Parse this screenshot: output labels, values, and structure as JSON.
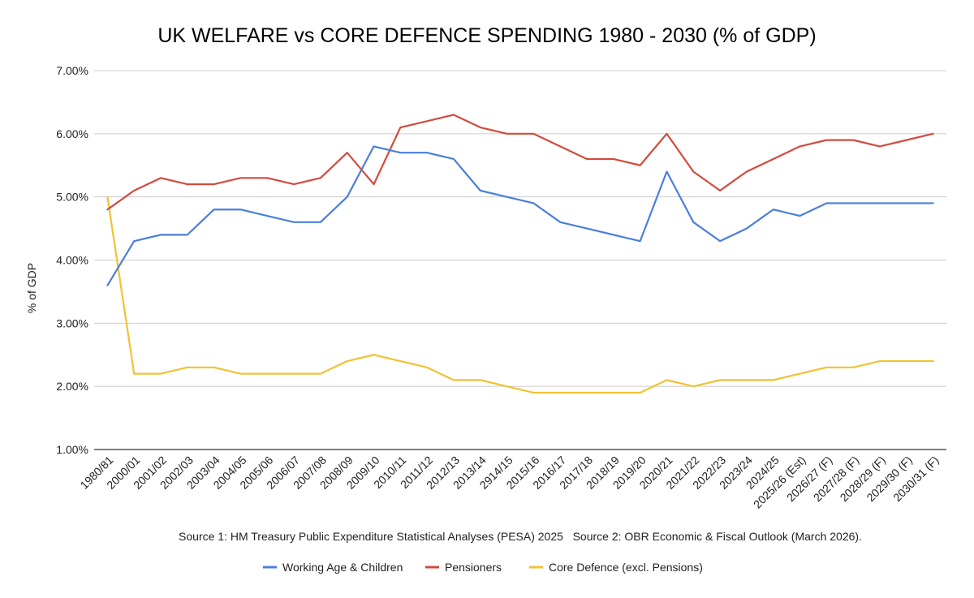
{
  "chart_data": {
    "type": "line",
    "title": "UK WELFARE vs CORE DEFENCE SPENDING 1980 - 2030 (% of GDP)",
    "xlabel": "",
    "ylabel": "% of GDP",
    "ylim": [
      1,
      7
    ],
    "yticks": [
      "1.00%",
      "2.00%",
      "3.00%",
      "4.00%",
      "5.00%",
      "6.00%",
      "7.00%"
    ],
    "ytick_values": [
      1,
      2,
      3,
      4,
      5,
      6,
      7
    ],
    "grid": true,
    "legend_position": "bottom",
    "categories": [
      "1980/81",
      "2000/01",
      "2001/02",
      "2002/03",
      "2003/04",
      "2004/05",
      "2005/06",
      "2006/07",
      "2007/08",
      "2008/09",
      "2009/10",
      "2010/11",
      "2011/12",
      "2012/13",
      "2013/14",
      "2914/15",
      "2015/16",
      "2016/17",
      "2017/18",
      "2018/19",
      "2019/20",
      "2020/21",
      "2021/22",
      "2022/23",
      "2023/24",
      "2024/25",
      "2025/26 (Est)",
      "2026/27 (F)",
      "2027/28 (F)",
      "2028/29 (F)",
      "2029/30 (F)",
      "2030/31 (F)"
    ],
    "series": [
      {
        "name": "Working Age & Children",
        "color": "#4a7fdc",
        "values": [
          3.6,
          4.3,
          4.4,
          4.4,
          4.8,
          4.8,
          4.7,
          4.6,
          4.6,
          5.0,
          5.8,
          5.7,
          5.7,
          5.6,
          5.1,
          5.0,
          4.9,
          4.6,
          4.5,
          4.4,
          4.3,
          5.4,
          4.6,
          4.3,
          4.5,
          4.8,
          4.7,
          4.9,
          4.9,
          4.9,
          4.9,
          4.9
        ]
      },
      {
        "name": "Pensioners",
        "color": "#d24b3d",
        "values": [
          4.8,
          5.1,
          5.3,
          5.2,
          5.2,
          5.3,
          5.3,
          5.2,
          5.3,
          5.7,
          5.2,
          6.1,
          6.2,
          6.3,
          6.1,
          6.0,
          6.0,
          5.8,
          5.6,
          5.6,
          5.5,
          6.0,
          5.4,
          5.1,
          5.4,
          5.6,
          5.8,
          5.9,
          5.9,
          5.8,
          5.9,
          6.0
        ]
      },
      {
        "name": "Core Defence (excl. Pensions)",
        "color": "#f1c233",
        "values": [
          5.0,
          2.2,
          2.2,
          2.3,
          2.3,
          2.2,
          2.2,
          2.2,
          2.2,
          2.4,
          2.5,
          2.4,
          2.3,
          2.1,
          2.1,
          2.0,
          1.9,
          1.9,
          1.9,
          1.9,
          1.9,
          2.1,
          2.0,
          2.1,
          2.1,
          2.1,
          2.2,
          2.3,
          2.3,
          2.4,
          2.4,
          2.4
        ]
      }
    ],
    "source_note": "Source 1: HM Treasury Public Expenditure Statistical Analyses (PESA) 2025   Source 2: OBR Economic & Fiscal Outlook (March 2026)."
  }
}
